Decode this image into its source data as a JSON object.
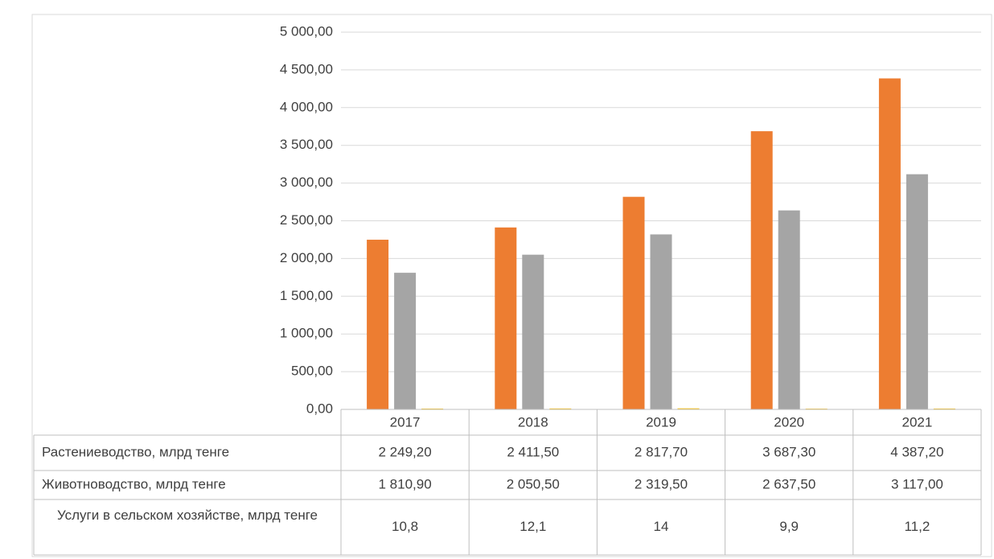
{
  "chart_data": {
    "type": "bar",
    "categories": [
      "2017",
      "2018",
      "2019",
      "2020",
      "2021"
    ],
    "series": [
      {
        "name": "Растениеводство, млрд тенге",
        "color": "#ed7d31",
        "values": [
          2249.2,
          2411.5,
          2817.7,
          3687.3,
          4387.2
        ],
        "value_labels": [
          "2 249,20",
          "2 411,50",
          "2 817,70",
          "3 687,30",
          "4 387,20"
        ]
      },
      {
        "name": "Животноводство, млрд тенге",
        "color": "#a5a5a5",
        "values": [
          1810.9,
          2050.5,
          2319.5,
          2637.5,
          3117.0
        ],
        "value_labels": [
          "1 810,90",
          "2 050,50",
          "2 319,50",
          "2 637,50",
          "3 117,00"
        ]
      },
      {
        "name": "Услуги в сельском хозяйстве, млрд тенге",
        "color": "#ffc000",
        "values": [
          10.8,
          12.1,
          14,
          9.9,
          11.2
        ],
        "value_labels": [
          "10,8",
          "12,1",
          "14",
          "9,9",
          "11,2"
        ]
      }
    ],
    "ylim": [
      0,
      5000
    ],
    "yticks": [
      {
        "value": 0,
        "label": "0,00"
      },
      {
        "value": 500,
        "label": "500,00"
      },
      {
        "value": 1000,
        "label": "1 000,00"
      },
      {
        "value": 1500,
        "label": "1 500,00"
      },
      {
        "value": 2000,
        "label": "2 000,00"
      },
      {
        "value": 2500,
        "label": "2 500,00"
      },
      {
        "value": 3000,
        "label": "3 000,00"
      },
      {
        "value": 3500,
        "label": "3 500,00"
      },
      {
        "value": 4000,
        "label": "4 000,00"
      },
      {
        "value": 4500,
        "label": "4 500,00"
      },
      {
        "value": 5000,
        "label": "5 000,00"
      }
    ],
    "grid": true
  }
}
